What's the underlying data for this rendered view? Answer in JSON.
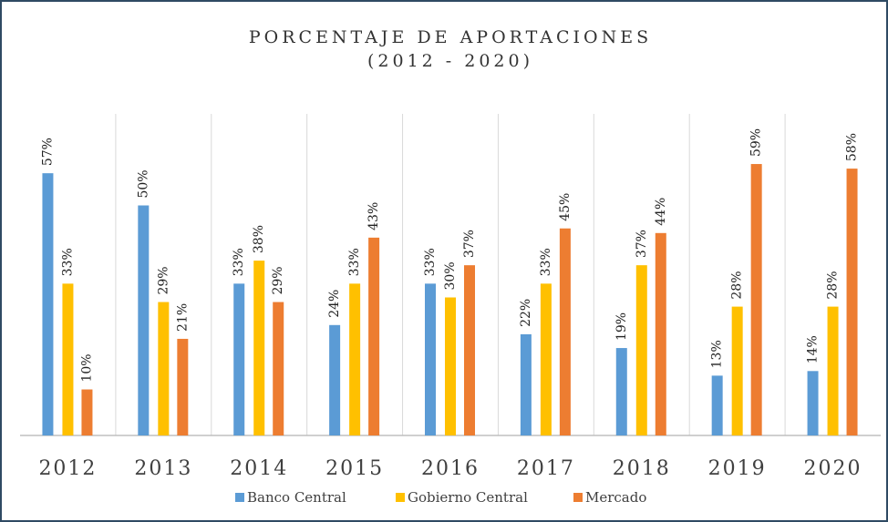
{
  "chart_data": {
    "type": "bar",
    "title": "PORCENTAJE DE APORTACIONES",
    "subtitle": "(2012 - 2020)",
    "categories": [
      "2012",
      "2013",
      "2014",
      "2015",
      "2016",
      "2017",
      "2018",
      "2019",
      "2020"
    ],
    "series": [
      {
        "name": "Banco Central",
        "color": "#5b9bd5",
        "values": [
          57,
          50,
          33,
          24,
          33,
          22,
          19,
          13,
          14
        ],
        "value_labels": [
          "57%",
          "50%",
          "33%",
          "24%",
          "33%",
          "22%",
          "19%",
          "13%",
          "14%"
        ]
      },
      {
        "name": "Gobierno Central",
        "color": "#ffc000",
        "values": [
          33,
          29,
          38,
          33,
          30,
          33,
          37,
          28,
          28
        ],
        "value_labels": [
          "33%",
          "29%",
          "38%",
          "33%",
          "30%",
          "33%",
          "37%",
          "28%",
          "28%"
        ]
      },
      {
        "name": "Mercado",
        "color": "#ed7d31",
        "values": [
          10,
          21,
          29,
          43,
          37,
          45,
          44,
          59,
          58
        ],
        "value_labels": [
          "10%",
          "21%",
          "29%",
          "43%",
          "37%",
          "45%",
          "44%",
          "59%",
          "58%"
        ]
      }
    ],
    "legend": "bottom"
  }
}
